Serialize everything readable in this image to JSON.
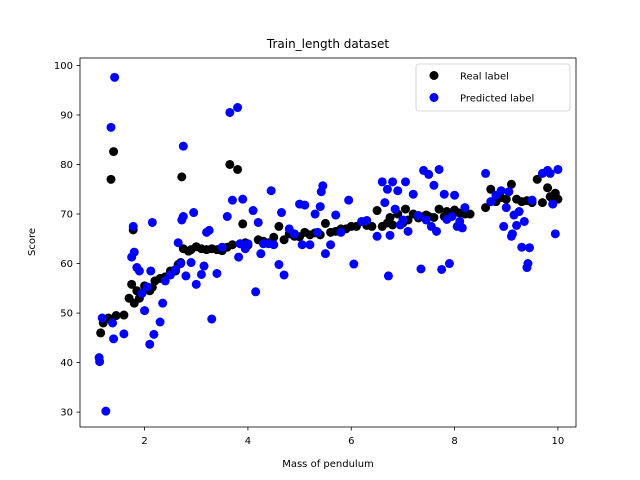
{
  "chart_data": {
    "type": "scatter",
    "title": "Train_length dataset",
    "xlabel": "Mass of pendulum",
    "ylabel": "Score",
    "xlim": [
      0.75,
      10.35
    ],
    "ylim": [
      27,
      101.5
    ],
    "xticks": [
      2,
      4,
      6,
      8,
      10
    ],
    "yticks": [
      30,
      40,
      50,
      60,
      70,
      80,
      90,
      100
    ],
    "grid": false,
    "legend_position": "top-right",
    "series": [
      {
        "name": "Real label",
        "color": "#000000",
        "points": [
          [
            1.15,
            46
          ],
          [
            1.2,
            48
          ],
          [
            1.3,
            49
          ],
          [
            1.35,
            77
          ],
          [
            1.4,
            82.6
          ],
          [
            1.45,
            49.5
          ],
          [
            1.6,
            49.6
          ],
          [
            1.7,
            53
          ],
          [
            1.75,
            55.8
          ],
          [
            1.78,
            66.8
          ],
          [
            1.8,
            52
          ],
          [
            1.85,
            54.5
          ],
          [
            1.9,
            53
          ],
          [
            2.0,
            55.5
          ],
          [
            2.05,
            55
          ],
          [
            2.1,
            54.5
          ],
          [
            2.15,
            55.2
          ],
          [
            2.2,
            56.5
          ],
          [
            2.3,
            57
          ],
          [
            2.4,
            57.3
          ],
          [
            2.5,
            58.5
          ],
          [
            2.6,
            58.5
          ],
          [
            2.65,
            59.8
          ],
          [
            2.7,
            60.2
          ],
          [
            2.72,
            77.5
          ],
          [
            2.75,
            63
          ],
          [
            2.85,
            62.5
          ],
          [
            2.9,
            62.8
          ],
          [
            3.0,
            63.4
          ],
          [
            3.1,
            63
          ],
          [
            3.2,
            62.8
          ],
          [
            3.3,
            63
          ],
          [
            3.4,
            62.8
          ],
          [
            3.5,
            62.6
          ],
          [
            3.6,
            63.3
          ],
          [
            3.65,
            80
          ],
          [
            3.7,
            63.8
          ],
          [
            3.8,
            79
          ],
          [
            3.85,
            64
          ],
          [
            3.9,
            68
          ],
          [
            3.95,
            64.2
          ],
          [
            4.0,
            63.7
          ],
          [
            4.2,
            64.8
          ],
          [
            4.3,
            64.5
          ],
          [
            4.4,
            64.2
          ],
          [
            4.5,
            65.3
          ],
          [
            4.6,
            67.5
          ],
          [
            4.7,
            64.8
          ],
          [
            4.8,
            66
          ],
          [
            4.9,
            65.5
          ],
          [
            5.0,
            65.4
          ],
          [
            5.1,
            66.3
          ],
          [
            5.2,
            65.8
          ],
          [
            5.3,
            66.2
          ],
          [
            5.4,
            65.8
          ],
          [
            5.5,
            68.1
          ],
          [
            5.6,
            66.3
          ],
          [
            5.7,
            66.5
          ],
          [
            5.8,
            67
          ],
          [
            5.9,
            67
          ],
          [
            6.0,
            67.5
          ],
          [
            6.1,
            67.5
          ],
          [
            6.3,
            67.7
          ],
          [
            6.4,
            67.5
          ],
          [
            6.5,
            70.7
          ],
          [
            6.6,
            67.5
          ],
          [
            6.7,
            68.2
          ],
          [
            6.75,
            69.3
          ],
          [
            6.8,
            67.8
          ],
          [
            6.9,
            70
          ],
          [
            7.0,
            68.2
          ],
          [
            7.05,
            71
          ],
          [
            7.1,
            68.8
          ],
          [
            7.2,
            70
          ],
          [
            7.3,
            69.2
          ],
          [
            7.4,
            69.5
          ],
          [
            7.45,
            69.8
          ],
          [
            7.5,
            69.5
          ],
          [
            7.6,
            69.3
          ],
          [
            7.7,
            71
          ],
          [
            7.8,
            69.5
          ],
          [
            7.85,
            70.5
          ],
          [
            7.9,
            69.8
          ],
          [
            8.0,
            70.8
          ],
          [
            8.1,
            70.2
          ],
          [
            8.2,
            70
          ],
          [
            8.3,
            70
          ],
          [
            8.6,
            71.3
          ],
          [
            8.7,
            75
          ],
          [
            8.8,
            72.5
          ],
          [
            8.9,
            73.3
          ],
          [
            9.0,
            73
          ],
          [
            9.1,
            76
          ],
          [
            9.2,
            73
          ],
          [
            9.3,
            72.5
          ],
          [
            9.4,
            72.7
          ],
          [
            9.5,
            72.3
          ],
          [
            9.6,
            77
          ],
          [
            9.7,
            72.3
          ],
          [
            9.8,
            75.3
          ],
          [
            9.85,
            73.5
          ],
          [
            9.9,
            73
          ],
          [
            9.95,
            74.2
          ],
          [
            10.0,
            73
          ]
        ]
      },
      {
        "name": "Predicted label",
        "color": "#0000ff",
        "points": [
          [
            1.12,
            41
          ],
          [
            1.13,
            40.2
          ],
          [
            1.18,
            49
          ],
          [
            1.25,
            30.2
          ],
          [
            1.35,
            87.5
          ],
          [
            1.38,
            48
          ],
          [
            1.4,
            44.8
          ],
          [
            1.42,
            97.6
          ],
          [
            1.6,
            45.8
          ],
          [
            1.75,
            61.3
          ],
          [
            1.78,
            67.5
          ],
          [
            1.8,
            62.3
          ],
          [
            1.85,
            59.2
          ],
          [
            1.9,
            58.5
          ],
          [
            1.95,
            54
          ],
          [
            2.0,
            50.5
          ],
          [
            2.05,
            55.3
          ],
          [
            2.1,
            43.7
          ],
          [
            2.12,
            58.5
          ],
          [
            2.15,
            68.3
          ],
          [
            2.18,
            45.7
          ],
          [
            2.3,
            48.2
          ],
          [
            2.35,
            52
          ],
          [
            2.4,
            56.5
          ],
          [
            2.5,
            57.7
          ],
          [
            2.6,
            58.8
          ],
          [
            2.65,
            64.2
          ],
          [
            2.7,
            60
          ],
          [
            2.72,
            68.8
          ],
          [
            2.75,
            83.7
          ],
          [
            2.75,
            69.5
          ],
          [
            2.8,
            57.5
          ],
          [
            2.9,
            60.2
          ],
          [
            2.95,
            70.3
          ],
          [
            3.0,
            55.8
          ],
          [
            3.1,
            57.8
          ],
          [
            3.15,
            59.5
          ],
          [
            3.2,
            66.3
          ],
          [
            3.25,
            66.7
          ],
          [
            3.3,
            48.8
          ],
          [
            3.4,
            58
          ],
          [
            3.5,
            63.3
          ],
          [
            3.6,
            69.5
          ],
          [
            3.65,
            90.5
          ],
          [
            3.7,
            72.8
          ],
          [
            3.8,
            91.5
          ],
          [
            3.82,
            61.3
          ],
          [
            3.85,
            64
          ],
          [
            3.9,
            73
          ],
          [
            3.95,
            63
          ],
          [
            4.0,
            64
          ],
          [
            4.1,
            70.7
          ],
          [
            4.15,
            54.3
          ],
          [
            4.2,
            68.3
          ],
          [
            4.25,
            62
          ],
          [
            4.3,
            64
          ],
          [
            4.4,
            64
          ],
          [
            4.45,
            74.7
          ],
          [
            4.5,
            63.8
          ],
          [
            4.6,
            59.8
          ],
          [
            4.65,
            70.3
          ],
          [
            4.7,
            57.7
          ],
          [
            4.8,
            67
          ],
          [
            4.9,
            66
          ],
          [
            5.0,
            72
          ],
          [
            5.05,
            63.8
          ],
          [
            5.1,
            71.8
          ],
          [
            5.2,
            63.8
          ],
          [
            5.3,
            70
          ],
          [
            5.35,
            66.3
          ],
          [
            5.4,
            71.5
          ],
          [
            5.42,
            74.5
          ],
          [
            5.45,
            75.7
          ],
          [
            5.5,
            62
          ],
          [
            5.6,
            63.8
          ],
          [
            5.7,
            69.8
          ],
          [
            5.8,
            66.3
          ],
          [
            5.95,
            72.8
          ],
          [
            6.05,
            59.9
          ],
          [
            6.2,
            68.5
          ],
          [
            6.3,
            68.7
          ],
          [
            6.5,
            65.5
          ],
          [
            6.6,
            76.5
          ],
          [
            6.65,
            72.3
          ],
          [
            6.7,
            75
          ],
          [
            6.72,
            57.5
          ],
          [
            6.75,
            65.7
          ],
          [
            6.8,
            76.5
          ],
          [
            6.85,
            71
          ],
          [
            6.9,
            74.7
          ],
          [
            6.95,
            67.8
          ],
          [
            7.0,
            68.8
          ],
          [
            7.05,
            76.5
          ],
          [
            7.1,
            66.5
          ],
          [
            7.2,
            74
          ],
          [
            7.3,
            69.7
          ],
          [
            7.35,
            58.9
          ],
          [
            7.4,
            78.8
          ],
          [
            7.45,
            68.8
          ],
          [
            7.5,
            78
          ],
          [
            7.55,
            67.5
          ],
          [
            7.6,
            75.8
          ],
          [
            7.65,
            66.5
          ],
          [
            7.7,
            79
          ],
          [
            7.75,
            58.8
          ],
          [
            7.8,
            74
          ],
          [
            7.85,
            68.9
          ],
          [
            7.9,
            60
          ],
          [
            7.95,
            69.5
          ],
          [
            8.0,
            73.8
          ],
          [
            8.05,
            67.5
          ],
          [
            8.1,
            68.5
          ],
          [
            8.15,
            67.2
          ],
          [
            8.2,
            71.3
          ],
          [
            8.6,
            78.2
          ],
          [
            8.7,
            72.5
          ],
          [
            8.8,
            73.8
          ],
          [
            8.9,
            74.7
          ],
          [
            8.95,
            67.5
          ],
          [
            9.0,
            71.3
          ],
          [
            9.05,
            74.5
          ],
          [
            9.1,
            65.5
          ],
          [
            9.12,
            66
          ],
          [
            9.15,
            69.8
          ],
          [
            9.2,
            67.7
          ],
          [
            9.25,
            70.5
          ],
          [
            9.3,
            63.3
          ],
          [
            9.35,
            68.5
          ],
          [
            9.4,
            59.2
          ],
          [
            9.42,
            60
          ],
          [
            9.45,
            63.2
          ],
          [
            9.5,
            72.8
          ],
          [
            9.7,
            78.2
          ],
          [
            9.8,
            78.8
          ],
          [
            9.85,
            78.2
          ],
          [
            9.9,
            72
          ],
          [
            9.95,
            66
          ],
          [
            10.0,
            79
          ]
        ]
      }
    ]
  }
}
